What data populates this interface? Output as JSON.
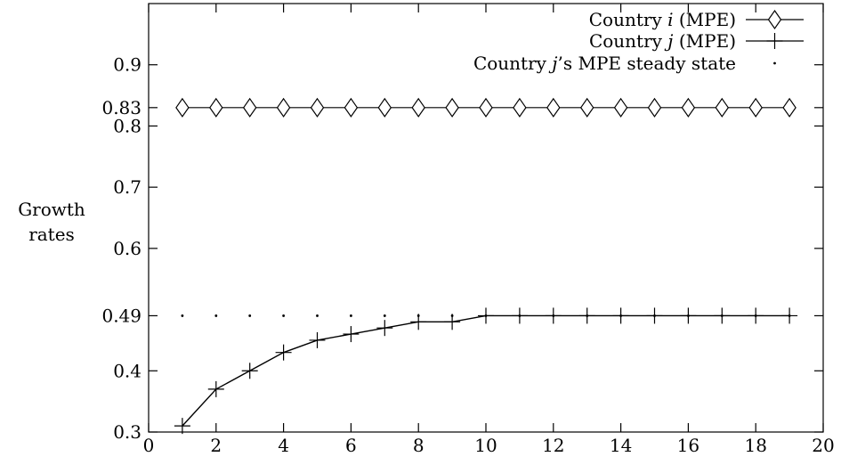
{
  "chart_data": {
    "type": "line",
    "title": "",
    "xlabel": "",
    "ylabel": [
      "Growth",
      "rates"
    ],
    "xlim": [
      0,
      20
    ],
    "ylim": [
      0.3,
      1.0
    ],
    "x_ticks": [
      0,
      2,
      4,
      6,
      8,
      10,
      12,
      14,
      16,
      18,
      20
    ],
    "y_ticks": [
      0.3,
      0.4,
      0.49,
      0.6,
      0.7,
      0.8,
      0.83,
      0.9
    ],
    "y_tick_labels": [
      "0.3",
      "0.4",
      "0.49",
      "0.6",
      "0.7",
      "0.8",
      "0.83",
      "0.9"
    ],
    "legend_position": "top-right",
    "grid": false,
    "series": [
      {
        "name": "Country i (MPE)",
        "legend": {
          "prefix": "Country ",
          "var": "i",
          "suffix": " (MPE)"
        },
        "marker": "diamond",
        "x": [
          1,
          2,
          3,
          4,
          5,
          6,
          7,
          8,
          9,
          10,
          11,
          12,
          13,
          14,
          15,
          16,
          17,
          18,
          19
        ],
        "y": [
          0.83,
          0.83,
          0.83,
          0.83,
          0.83,
          0.83,
          0.83,
          0.83,
          0.83,
          0.83,
          0.83,
          0.83,
          0.83,
          0.83,
          0.83,
          0.83,
          0.83,
          0.83,
          0.83
        ]
      },
      {
        "name": "Country j (MPE)",
        "legend": {
          "prefix": "Country ",
          "var": "j",
          "suffix": " (MPE)"
        },
        "marker": "plus",
        "x": [
          1,
          2,
          3,
          4,
          5,
          6,
          7,
          8,
          9,
          10,
          11,
          12,
          13,
          14,
          15,
          16,
          17,
          18,
          19
        ],
        "y": [
          0.31,
          0.37,
          0.4,
          0.43,
          0.45,
          0.46,
          0.47,
          0.48,
          0.48,
          0.49,
          0.49,
          0.49,
          0.49,
          0.49,
          0.49,
          0.49,
          0.49,
          0.49,
          0.49
        ]
      },
      {
        "name": "Country j's MPE steady state",
        "legend": {
          "prefix": "Country ",
          "var": "j",
          "suffix": "’s MPE steady state"
        },
        "marker": "dot",
        "x": [
          1,
          2,
          3,
          4,
          5,
          6,
          7,
          8,
          9,
          10,
          11,
          12,
          13,
          14,
          15,
          16,
          17,
          18,
          19
        ],
        "y": [
          0.49,
          0.49,
          0.49,
          0.49,
          0.49,
          0.49,
          0.49,
          0.49,
          0.49,
          0.49,
          0.49,
          0.49,
          0.49,
          0.49,
          0.49,
          0.49,
          0.49,
          0.49,
          0.49
        ]
      }
    ]
  }
}
